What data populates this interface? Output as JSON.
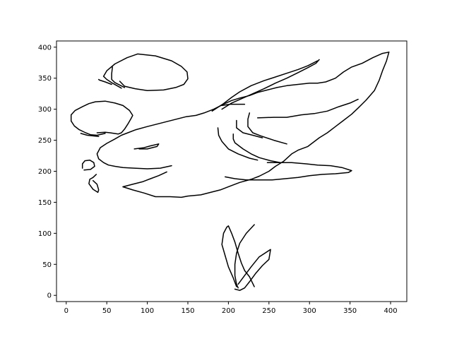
{
  "chart_data": {
    "type": "line",
    "title": "",
    "xlabel": "",
    "ylabel": "",
    "xlim": [
      -12,
      420
    ],
    "ylim": [
      -10,
      410
    ],
    "xticks": [
      0,
      50,
      100,
      150,
      200,
      250,
      300,
      350,
      400
    ],
    "yticks": [
      0,
      50,
      100,
      150,
      200,
      250,
      300,
      350,
      400
    ],
    "grid": false,
    "legend": "none",
    "line_color": "#000000",
    "series": [
      {
        "points": [
          [
            68,
            334
          ],
          [
            57,
            342
          ],
          [
            50,
            348
          ],
          [
            46,
            353
          ],
          [
            50,
            362
          ],
          [
            60,
            373
          ],
          [
            75,
            383
          ],
          [
            88,
            389
          ],
          [
            110,
            386
          ],
          [
            130,
            378
          ],
          [
            142,
            369
          ],
          [
            149,
            360
          ],
          [
            150,
            349
          ],
          [
            145,
            340
          ],
          [
            135,
            335
          ],
          [
            120,
            331
          ],
          [
            100,
            330
          ],
          [
            85,
            333
          ],
          [
            72,
            337
          ],
          [
            66,
            345
          ]
        ]
      },
      {
        "points": [
          [
            57,
            368
          ],
          [
            56,
            357
          ],
          [
            56,
            348
          ],
          [
            60,
            343
          ],
          [
            72,
            335
          ]
        ]
      },
      {
        "points": [
          [
            56,
            340
          ],
          [
            48,
            344
          ],
          [
            41,
            347
          ],
          [
            40,
            348
          ]
        ]
      },
      {
        "points": [
          [
            38,
            262
          ],
          [
            48,
            263
          ],
          [
            54,
            262
          ],
          [
            64,
            260
          ],
          [
            68,
            262
          ],
          [
            72,
            268
          ],
          [
            76,
            276
          ],
          [
            80,
            285
          ],
          [
            82,
            290
          ],
          [
            78,
            298
          ],
          [
            70,
            306
          ],
          [
            60,
            310
          ],
          [
            48,
            313
          ],
          [
            36,
            312
          ],
          [
            28,
            309
          ],
          [
            20,
            304
          ],
          [
            11,
            298
          ],
          [
            6,
            291
          ],
          [
            6,
            281
          ],
          [
            10,
            273
          ],
          [
            16,
            267
          ],
          [
            24,
            262
          ],
          [
            30,
            259
          ],
          [
            38,
            258
          ],
          [
            48,
            261
          ]
        ]
      },
      {
        "points": [
          [
            18,
            261
          ],
          [
            26,
            258
          ],
          [
            40,
            256
          ]
        ]
      },
      {
        "points": [
          [
            20,
            205
          ],
          [
            20,
            212
          ],
          [
            23,
            217
          ],
          [
            29,
            218
          ],
          [
            34,
            214
          ],
          [
            35,
            208
          ],
          [
            30,
            203
          ],
          [
            22,
            202
          ]
        ]
      },
      {
        "points": [
          [
            37,
            195
          ],
          [
            33,
            190
          ],
          [
            29,
            187
          ],
          [
            28,
            180
          ],
          [
            33,
            171
          ],
          [
            39,
            166
          ],
          [
            40,
            170
          ],
          [
            38,
            179
          ],
          [
            33,
            185
          ]
        ]
      },
      {
        "points": [
          [
            70,
            175
          ],
          [
            82,
            179
          ],
          [
            94,
            183
          ],
          [
            104,
            188
          ],
          [
            114,
            193
          ],
          [
            124,
            199
          ]
        ]
      },
      {
        "points": [
          [
            70,
            175
          ],
          [
            82,
            170
          ],
          [
            96,
            165
          ],
          [
            110,
            159
          ],
          [
            128,
            159
          ],
          [
            142,
            158
          ],
          [
            150,
            160
          ],
          [
            166,
            162
          ],
          [
            178,
            166
          ],
          [
            190,
            170
          ],
          [
            202,
            176
          ],
          [
            214,
            182
          ],
          [
            228,
            187
          ],
          [
            238,
            192
          ],
          [
            250,
            200
          ],
          [
            258,
            208
          ],
          [
            268,
            216
          ],
          [
            278,
            228
          ],
          [
            286,
            234
          ],
          [
            298,
            240
          ],
          [
            312,
            254
          ],
          [
            322,
            262
          ],
          [
            332,
            272
          ],
          [
            342,
            282
          ],
          [
            352,
            292
          ],
          [
            360,
            302
          ],
          [
            370,
            315
          ],
          [
            380,
            330
          ],
          [
            386,
            347
          ],
          [
            390,
            362
          ],
          [
            395,
            378
          ],
          [
            398,
            392
          ]
        ]
      },
      {
        "points": [
          [
            398,
            392
          ],
          [
            390,
            390
          ],
          [
            378,
            383
          ],
          [
            365,
            374
          ],
          [
            352,
            368
          ],
          [
            342,
            360
          ],
          [
            332,
            350
          ],
          [
            320,
            344
          ],
          [
            310,
            342
          ],
          [
            300,
            342
          ],
          [
            286,
            340
          ],
          [
            272,
            338
          ],
          [
            260,
            335
          ],
          [
            248,
            331
          ],
          [
            236,
            327
          ],
          [
            226,
            322
          ],
          [
            214,
            318
          ],
          [
            204,
            314
          ],
          [
            194,
            308
          ],
          [
            182,
            300
          ],
          [
            170,
            294
          ],
          [
            160,
            290
          ],
          [
            148,
            288
          ],
          [
            136,
            284
          ],
          [
            124,
            280
          ],
          [
            112,
            276
          ],
          [
            100,
            272
          ],
          [
            86,
            267
          ],
          [
            76,
            262
          ],
          [
            68,
            258
          ],
          [
            60,
            252
          ],
          [
            50,
            245
          ],
          [
            42,
            238
          ],
          [
            38,
            228
          ],
          [
            40,
            220
          ],
          [
            46,
            214
          ],
          [
            52,
            210
          ],
          [
            60,
            208
          ],
          [
            70,
            206
          ],
          [
            84,
            205
          ],
          [
            100,
            204
          ],
          [
            116,
            205
          ],
          [
            130,
            209
          ]
        ]
      },
      {
        "points": [
          [
            180,
            297
          ],
          [
            194,
            309
          ],
          [
            204,
            319
          ],
          [
            214,
            328
          ],
          [
            228,
            338
          ],
          [
            244,
            346
          ],
          [
            258,
            352
          ],
          [
            272,
            358
          ],
          [
            286,
            364
          ],
          [
            298,
            370
          ],
          [
            310,
            378
          ]
        ]
      },
      {
        "points": [
          [
            192,
            300
          ],
          [
            204,
            310
          ],
          [
            218,
            318
          ],
          [
            230,
            325
          ],
          [
            244,
            333
          ],
          [
            258,
            342
          ],
          [
            272,
            350
          ],
          [
            286,
            359
          ],
          [
            298,
            367
          ],
          [
            308,
            374
          ],
          [
            312,
            380
          ]
        ]
      },
      {
        "points": [
          [
            220,
            308
          ],
          [
            202,
            308
          ],
          [
            192,
            306
          ]
        ]
      },
      {
        "points": [
          [
            236,
            286
          ],
          [
            256,
            287
          ],
          [
            272,
            287
          ],
          [
            290,
            291
          ],
          [
            306,
            293
          ],
          [
            322,
            297
          ],
          [
            336,
            304
          ],
          [
            350,
            310
          ],
          [
            360,
            316
          ]
        ]
      },
      {
        "points": [
          [
            248,
            214
          ],
          [
            262,
            214
          ],
          [
            278,
            214
          ],
          [
            296,
            212
          ],
          [
            310,
            210
          ],
          [
            326,
            209
          ],
          [
            340,
            206
          ],
          [
            352,
            201
          ],
          [
            348,
            198
          ],
          [
            332,
            196
          ],
          [
            316,
            195
          ],
          [
            300,
            193
          ],
          [
            286,
            190
          ],
          [
            270,
            188
          ],
          [
            254,
            186
          ],
          [
            238,
            186
          ],
          [
            222,
            186
          ],
          [
            208,
            188
          ],
          [
            196,
            191
          ]
        ]
      },
      {
        "points": [
          [
            206,
            260
          ],
          [
            206,
            252
          ],
          [
            208,
            246
          ],
          [
            218,
            236
          ],
          [
            228,
            228
          ],
          [
            238,
            222
          ],
          [
            252,
            217
          ],
          [
            264,
            214
          ]
        ]
      },
      {
        "points": [
          [
            187,
            270
          ],
          [
            188,
            258
          ],
          [
            192,
            248
          ],
          [
            200,
            236
          ],
          [
            212,
            228
          ],
          [
            226,
            221
          ],
          [
            236,
            218
          ]
        ]
      },
      {
        "points": [
          [
            226,
            294
          ],
          [
            224,
            284
          ],
          [
            224,
            272
          ],
          [
            230,
            262
          ],
          [
            240,
            257
          ],
          [
            256,
            250
          ],
          [
            272,
            244
          ]
        ]
      },
      {
        "points": [
          [
            210,
            282
          ],
          [
            210,
            270
          ],
          [
            218,
            262
          ],
          [
            230,
            258
          ],
          [
            242,
            254
          ]
        ]
      },
      {
        "points": [
          [
            84,
            236
          ],
          [
            96,
            238
          ],
          [
            104,
            241
          ],
          [
            114,
            244
          ],
          [
            112,
            240
          ],
          [
            100,
            236
          ],
          [
            90,
            236
          ]
        ]
      },
      {
        "points": [
          [
            208,
            10
          ],
          [
            214,
            8
          ],
          [
            220,
            12
          ],
          [
            226,
            22
          ],
          [
            234,
            36
          ],
          [
            242,
            48
          ],
          [
            250,
            58
          ],
          [
            252,
            74
          ],
          [
            238,
            62
          ],
          [
            228,
            46
          ],
          [
            220,
            32
          ],
          [
            212,
            18
          ]
        ]
      },
      {
        "points": [
          [
            210,
            14
          ],
          [
            206,
            28
          ],
          [
            200,
            46
          ],
          [
            196,
            64
          ],
          [
            192,
            82
          ],
          [
            194,
            100
          ],
          [
            198,
            110
          ],
          [
            200,
            112
          ],
          [
            204,
            100
          ],
          [
            208,
            86
          ],
          [
            212,
            68
          ],
          [
            216,
            52
          ],
          [
            220,
            40
          ],
          [
            226,
            30
          ],
          [
            232,
            14
          ]
        ]
      },
      {
        "points": [
          [
            232,
            114
          ],
          [
            222,
            100
          ],
          [
            214,
            84
          ],
          [
            210,
            68
          ],
          [
            208,
            50
          ],
          [
            208,
            32
          ],
          [
            210,
            18
          ],
          [
            212,
            12
          ]
        ]
      }
    ]
  }
}
